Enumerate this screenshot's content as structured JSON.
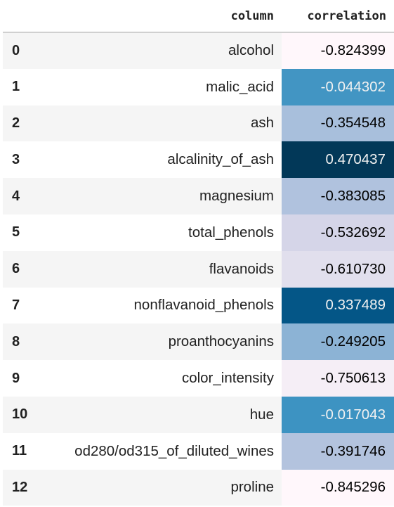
{
  "table": {
    "columns": [
      "",
      "column",
      "correlation"
    ],
    "rows": [
      {
        "index": "0",
        "column": "alcohol",
        "correlation": "-0.824399",
        "bg": "#fff7fb",
        "fg": "#000000"
      },
      {
        "index": "1",
        "column": "malic_acid",
        "correlation": "-0.044302",
        "bg": "#4295c3",
        "fg": "#f1f1f1"
      },
      {
        "index": "2",
        "column": "ash",
        "correlation": "-0.354548",
        "bg": "#a8bfdc",
        "fg": "#000000"
      },
      {
        "index": "3",
        "column": "alcalinity_of_ash",
        "correlation": "0.470437",
        "bg": "#023858",
        "fg": "#f1f1f1"
      },
      {
        "index": "4",
        "column": "magnesium",
        "correlation": "-0.383085",
        "bg": "#b0c2de",
        "fg": "#000000"
      },
      {
        "index": "5",
        "column": "total_phenols",
        "correlation": "-0.532692",
        "bg": "#d5d5e8",
        "fg": "#000000"
      },
      {
        "index": "6",
        "column": "flavanoids",
        "correlation": "-0.610730",
        "bg": "#e1dfed",
        "fg": "#000000"
      },
      {
        "index": "7",
        "column": "nonflavanoid_phenols",
        "correlation": "0.337489",
        "bg": "#045687",
        "fg": "#f1f1f1"
      },
      {
        "index": "8",
        "column": "proanthocyanins",
        "correlation": "-0.249205",
        "bg": "#8cb3d5",
        "fg": "#000000"
      },
      {
        "index": "9",
        "column": "color_intensity",
        "correlation": "-0.750613",
        "bg": "#f5eef6",
        "fg": "#000000"
      },
      {
        "index": "10",
        "column": "hue",
        "correlation": "-0.017043",
        "bg": "#3d93c2",
        "fg": "#f1f1f1"
      },
      {
        "index": "11",
        "column": "od280/od315_of_diluted_wines",
        "correlation": "-0.391746",
        "bg": "#b3c3de",
        "fg": "#000000"
      },
      {
        "index": "12",
        "column": "proline",
        "correlation": "-0.845296",
        "bg": "#fff7fb",
        "fg": "#000000"
      }
    ]
  }
}
